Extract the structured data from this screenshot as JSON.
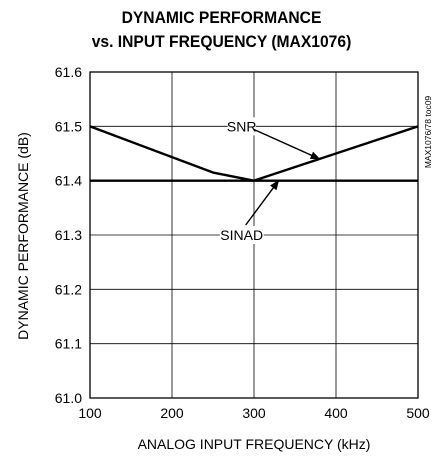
{
  "chart_data": {
    "type": "line",
    "title_line1": "DYNAMIC PERFORMANCE",
    "title_line2": "vs. INPUT FREQUENCY (MAX1076)",
    "xlabel": "ANALOG INPUT FREQUENCY (kHz)",
    "ylabel": "DYNAMIC PERFORMANCE (dB)",
    "watermark": "MAX1076/78 toc09",
    "xlim": [
      100,
      500
    ],
    "ylim": [
      61.0,
      61.6
    ],
    "x_ticks": [
      "100",
      "200",
      "300",
      "400",
      "500"
    ],
    "y_ticks": [
      "61.0",
      "61.1",
      "61.2",
      "61.3",
      "61.4",
      "61.5",
      "61.6"
    ],
    "grid": true,
    "series": [
      {
        "name": "SNR",
        "x": [
          100,
          250,
          300,
          500
        ],
        "y": [
          61.5,
          61.415,
          61.4,
          61.5
        ]
      },
      {
        "name": "SINAD",
        "x": [
          100,
          300,
          500
        ],
        "y": [
          61.4,
          61.4,
          61.4
        ]
      }
    ],
    "annotations": [
      {
        "text": "SNR",
        "label_x": 285,
        "label_y": 61.5,
        "arrow_to_x": 380,
        "arrow_to_y": 61.44
      },
      {
        "text": "SINAD",
        "label_x": 285,
        "label_y": 61.3,
        "arrow_to_x": 330,
        "arrow_to_y": 61.4
      }
    ]
  }
}
